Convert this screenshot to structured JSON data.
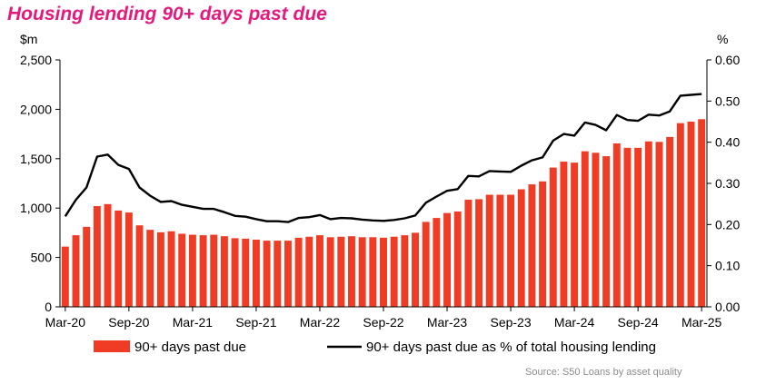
{
  "chart_data": {
    "type": "bar+line",
    "title": "Housing lending 90+ days past due",
    "left_unit": "$m",
    "right_unit": "%",
    "y_left_range": [
      0,
      2500
    ],
    "y_right_range": [
      0,
      0.6
    ],
    "y_left_ticks": [
      "0",
      "500",
      "1,000",
      "1,500",
      "2,000",
      "2,500"
    ],
    "y_right_ticks": [
      "0.00",
      "0.10",
      "0.20",
      "0.30",
      "0.40",
      "0.50",
      "0.60"
    ],
    "x_tick_labels": [
      "Mar-20",
      "Sep-20",
      "Mar-21",
      "Sep-21",
      "Mar-22",
      "Sep-22",
      "Mar-23",
      "Sep-23",
      "Mar-24",
      "Sep-24",
      "Mar-25"
    ],
    "grid": false,
    "legend_position": "bottom",
    "period_start": "Mar-20",
    "period_end": "Mar-25",
    "series": [
      {
        "name": "90+ days past due",
        "axis": "left",
        "type": "bar",
        "color": "#f03c24",
        "values": [
          610,
          725,
          810,
          1020,
          1040,
          975,
          955,
          825,
          780,
          755,
          765,
          740,
          730,
          725,
          730,
          715,
          695,
          690,
          680,
          670,
          670,
          670,
          700,
          710,
          725,
          705,
          710,
          715,
          705,
          705,
          700,
          710,
          725,
          750,
          860,
          900,
          950,
          965,
          1085,
          1090,
          1135,
          1135,
          1135,
          1190,
          1240,
          1270,
          1410,
          1470,
          1460,
          1575,
          1560,
          1525,
          1655,
          1610,
          1610,
          1675,
          1670,
          1720,
          1860,
          1875,
          1900
        ]
      },
      {
        "name": "90+ days past due as % of total housing lending",
        "axis": "right",
        "type": "line",
        "color": "#000000",
        "values": [
          0.22,
          0.26,
          0.29,
          0.365,
          0.37,
          0.345,
          0.335,
          0.29,
          0.27,
          0.255,
          0.257,
          0.248,
          0.243,
          0.238,
          0.238,
          0.23,
          0.221,
          0.219,
          0.213,
          0.208,
          0.208,
          0.206,
          0.216,
          0.218,
          0.223,
          0.213,
          0.216,
          0.215,
          0.212,
          0.21,
          0.209,
          0.211,
          0.215,
          0.222,
          0.253,
          0.268,
          0.282,
          0.286,
          0.318,
          0.317,
          0.33,
          0.329,
          0.328,
          0.343,
          0.356,
          0.363,
          0.404,
          0.42,
          0.416,
          0.448,
          0.442,
          0.429,
          0.466,
          0.454,
          0.452,
          0.467,
          0.465,
          0.475,
          0.513,
          0.515,
          0.517
        ]
      }
    ],
    "source": "Source: S50 Loans by asset quality"
  }
}
